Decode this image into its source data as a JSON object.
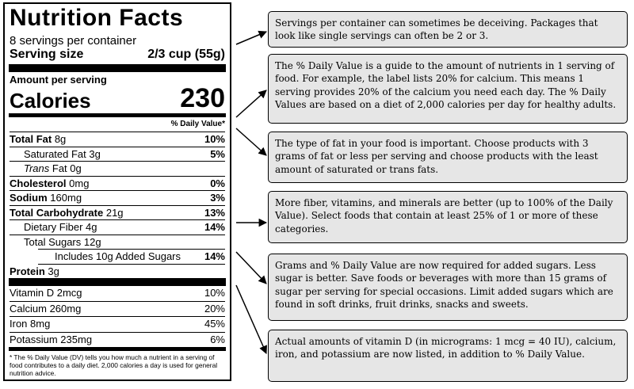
{
  "label": {
    "title": "Nutrition Facts",
    "servings_per_container": "8 servings per container",
    "serving_size_label": "Serving size",
    "serving_size_value": "2/3 cup (55g)",
    "amount_per_serving": "Amount per serving",
    "calories_label": "Calories",
    "calories_value": "230",
    "daily_value_header": "% Daily Value*",
    "nutrients": [
      {
        "name": "Total Fat",
        "amount": "8g",
        "dv": "10%"
      },
      {
        "name": "Saturated Fat",
        "amount": "3g",
        "dv": "5%"
      },
      {
        "name": "Trans",
        "suffix": "Fat 0g",
        "dv": ""
      },
      {
        "name": "Cholesterol",
        "amount": "0mg",
        "dv": "0%"
      },
      {
        "name": "Sodium",
        "amount": "160mg",
        "dv": "3%"
      },
      {
        "name": "Total Carbohydrate",
        "amount": "21g",
        "dv": "13%"
      },
      {
        "name": "Dietary Fiber",
        "amount": "4g",
        "dv": "14%"
      },
      {
        "name": "Total Sugars",
        "amount": "12g",
        "dv": ""
      },
      {
        "name": "Includes 10g Added Sugars",
        "amount": "",
        "dv": "14%"
      },
      {
        "name": "Protein",
        "amount": "3g",
        "dv": ""
      }
    ],
    "vitamins": [
      {
        "name": "Vitamin D 2mcg",
        "dv": "10%"
      },
      {
        "name": "Calcium 260mg",
        "dv": "20%"
      },
      {
        "name": "Iron 8mg",
        "dv": "45%"
      },
      {
        "name": "Potassium 235mg",
        "dv": "6%"
      }
    ],
    "footnote": "* The % Daily Value (DV) tells you how much a nutrient in a serving of food contributes to a daily diet. 2,000 calories a day is used for general nutrition advice."
  },
  "notes": [
    "Servings per container can sometimes be deceiving. Packages that look like single servings can often be 2 or 3.",
    "The % Daily Value is a guide to the amount of nutrients in 1 serving of food. For example, the label lists 20% for calcium. This means 1 serving provides 20% of the calcium you need each day. The % Daily Values are based on a diet of 2,000 calories per day for healthy adults.",
    "The type of fat in your food is important. Choose products with 3 grams of fat or less per serving and choose products with the least amount of saturated or trans fats.",
    "More fiber, vitamins, and minerals are better (up to 100% of the Daily Value). Select foods that contain at least 25% of 1 or more of these categories.",
    "Grams and % Daily Value are now required for added sugars. Less sugar is better. Save foods or beverages with more than 15 grams of sugar per serving for special occasions. Limit added sugars which are found in soft drinks, fruit drinks, snacks and sweets.",
    "Actual amounts of vitamin D (in micrograms: 1 mcg = 40 IU), calcium, iron, and potassium are now listed, in addition to % Daily Value."
  ],
  "colors": {
    "note_background": "#e6e6e6",
    "ink": "#000000"
  }
}
